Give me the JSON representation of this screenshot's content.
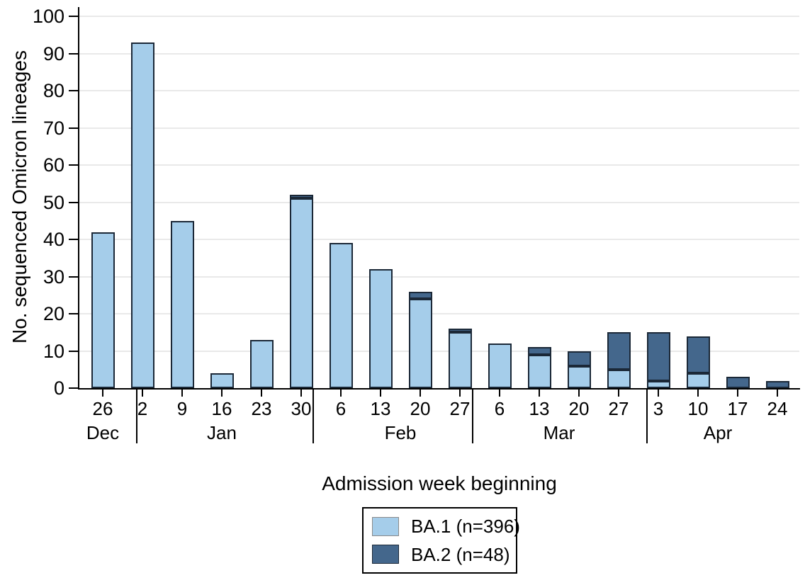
{
  "figure": {
    "background": "#FFFFFF"
  },
  "chart_data": {
    "type": "bar",
    "stacked": true,
    "title": "",
    "xlabel": "Admission week beginning",
    "ylabel": "No. sequenced Omicron lineages",
    "ylim": [
      0,
      100
    ],
    "yticks": [
      0,
      10,
      20,
      30,
      40,
      50,
      60,
      70,
      80,
      90,
      100
    ],
    "grid": true,
    "legend_position": "below-center",
    "categories": [
      "26",
      "2",
      "9",
      "16",
      "23",
      "30",
      "6",
      "13",
      "20",
      "27",
      "6",
      "13",
      "20",
      "27",
      "3",
      "10",
      "17",
      "24"
    ],
    "month_groups": [
      {
        "label": "Dec",
        "bars": 1
      },
      {
        "label": "Jan",
        "bars": 5
      },
      {
        "label": "Feb",
        "bars": 4
      },
      {
        "label": "Mar",
        "bars": 4
      },
      {
        "label": "Apr",
        "bars": 4
      }
    ],
    "series": [
      {
        "name": "BA.1 (n=396)",
        "color": "#A5CDEA",
        "values": [
          42,
          93,
          45,
          4,
          13,
          51,
          39,
          32,
          24,
          15,
          12,
          9,
          6,
          5,
          2,
          4,
          0,
          0
        ]
      },
      {
        "name": "BA.2 (n=48)",
        "color": "#44678C",
        "values": [
          0,
          0,
          0,
          0,
          0,
          1,
          0,
          0,
          2,
          1,
          0,
          2,
          4,
          10,
          13,
          10,
          3,
          2
        ]
      }
    ],
    "colors": {
      "bar_border": "#1B2837",
      "gridline": "#E9E9E9",
      "axis": "#000000",
      "text": "#000000",
      "light_swatch_border": "#8A8A8A"
    }
  }
}
